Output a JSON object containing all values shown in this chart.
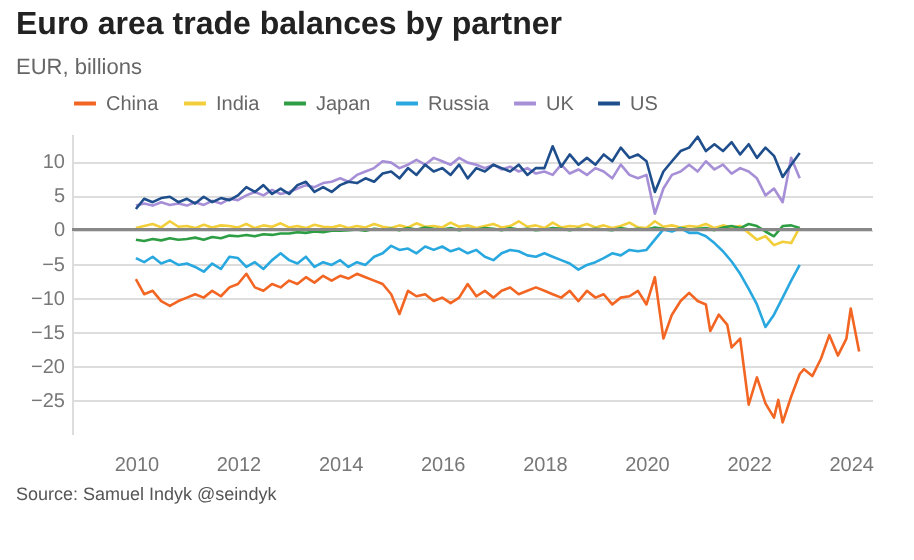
{
  "chart_data": {
    "type": "line",
    "title": "Euro area trade balances by partner",
    "subtitle": "EUR, billions",
    "annotations": [
      "Source: Samuel Indyk @seindyk"
    ],
    "x": [
      "2010-01",
      "2010-03",
      "2010-05",
      "2010-07",
      "2010-09",
      "2010-11",
      "2011-01",
      "2011-03",
      "2011-05",
      "2011-07",
      "2011-09",
      "2011-11",
      "2012-01",
      "2012-03",
      "2012-05",
      "2012-07",
      "2012-09",
      "2012-11",
      "2013-01",
      "2013-03",
      "2013-05",
      "2013-07",
      "2013-09",
      "2013-11",
      "2014-01",
      "2014-03",
      "2014-05",
      "2014-07",
      "2014-09",
      "2014-11",
      "2015-01",
      "2015-03",
      "2015-05",
      "2015-07",
      "2015-09",
      "2015-11",
      "2016-01",
      "2016-03",
      "2016-05",
      "2016-07",
      "2016-09",
      "2016-11",
      "2017-01",
      "2017-03",
      "2017-05",
      "2017-07",
      "2017-09",
      "2017-11",
      "2018-01",
      "2018-03",
      "2018-05",
      "2018-07",
      "2018-09",
      "2018-11",
      "2019-01",
      "2019-03",
      "2019-05",
      "2019-07",
      "2019-09",
      "2019-11",
      "2020-01",
      "2020-03",
      "2020-05",
      "2020-07",
      "2020-09",
      "2020-11",
      "2021-01",
      "2021-03",
      "2021-05",
      "2021-07",
      "2021-09",
      "2021-11",
      "2022-01",
      "2022-03",
      "2022-05",
      "2022-07",
      "2022-09",
      "2022-11",
      "2023-01"
    ],
    "series": [
      {
        "name": "China",
        "color": "#f26522",
        "x": [
          "2010-01",
          "2010-03",
          "2010-05",
          "2010-07",
          "2010-09",
          "2010-11",
          "2011-01",
          "2011-03",
          "2011-05",
          "2011-07",
          "2011-09",
          "2011-11",
          "2012-01",
          "2012-03",
          "2012-05",
          "2012-07",
          "2012-09",
          "2012-11",
          "2013-01",
          "2013-03",
          "2013-05",
          "2013-07",
          "2013-09",
          "2013-11",
          "2014-01",
          "2014-03",
          "2014-05",
          "2014-07",
          "2014-09",
          "2014-11",
          "2015-01",
          "2015-03",
          "2015-05",
          "2015-07",
          "2015-09",
          "2015-11",
          "2016-01",
          "2016-03",
          "2016-05",
          "2016-07",
          "2016-09",
          "2016-11",
          "2017-01",
          "2017-03",
          "2017-05",
          "2017-07",
          "2017-09",
          "2017-11",
          "2018-01",
          "2018-03",
          "2018-05",
          "2018-07",
          "2018-09",
          "2018-11",
          "2019-01",
          "2019-03",
          "2019-05",
          "2019-07",
          "2019-09",
          "2019-11",
          "2020-01",
          "2020-03",
          "2020-05",
          "2020-07",
          "2020-09",
          "2020-11",
          "2021-01",
          "2021-03",
          "2021-04",
          "2021-06",
          "2021-08",
          "2021-09",
          "2021-11",
          "2022-01",
          "2022-03",
          "2022-05",
          "2022-07",
          "2022-08",
          "2022-09",
          "2022-11",
          "2023-01",
          "2023-02",
          "2023-04",
          "2023-06",
          "2023-08",
          "2023-10",
          "2023-12",
          "2024-01",
          "2024-03"
        ],
        "values": [
          -7.3,
          -9.5,
          -9,
          -10.5,
          -11.2,
          -10.5,
          -10,
          -9.5,
          -10,
          -9,
          -9.8,
          -8.5,
          -8,
          -6.5,
          -8.5,
          -9,
          -8,
          -8.5,
          -7.5,
          -8,
          -7,
          -7.8,
          -6.8,
          -7.5,
          -6.8,
          -7.2,
          -6.5,
          -7,
          -7.5,
          -8,
          -9.5,
          -12.4,
          -9,
          -9.8,
          -9.5,
          -10.5,
          -10,
          -10.8,
          -10,
          -8,
          -9.8,
          -9,
          -10,
          -9,
          -8.5,
          -9.5,
          -9,
          -8.5,
          -9,
          -9.5,
          -10,
          -9,
          -10.5,
          -9,
          -10,
          -9.5,
          -11,
          -10,
          -9.8,
          -9,
          -11,
          -7,
          -16,
          -12.5,
          -10.5,
          -9.3,
          -10.5,
          -11,
          -14.9,
          -12.5,
          -14,
          -17.3,
          -16,
          -25.7,
          -21.7,
          -25.5,
          -27.6,
          -25,
          -28.3,
          -24.5,
          -21.2,
          -20.5,
          -21.5,
          -19,
          -15.5,
          -18.5,
          -16,
          -11.6,
          -17.9
        ]
      },
      {
        "name": "India",
        "color": "#f2cf3a",
        "values": [
          0.2,
          0.5,
          0.8,
          0.3,
          1.2,
          0.4,
          0.5,
          0.2,
          0.7,
          0.3,
          0.6,
          0.5,
          0.3,
          0.8,
          0.2,
          0.6,
          0.4,
          0.9,
          0.3,
          0.5,
          0.2,
          0.7,
          0.4,
          0.3,
          0.6,
          0.2,
          0.5,
          0.3,
          0.8,
          0.4,
          0.2,
          0.6,
          0.3,
          0.9,
          0.4,
          0.5,
          0.3,
          1.0,
          0.4,
          0.6,
          0.2,
          0.5,
          0.8,
          0.3,
          0.5,
          1.2,
          0.4,
          0.6,
          0.2,
          1.0,
          0.3,
          0.5,
          0.4,
          0.8,
          0.3,
          0.6,
          0.2,
          0.5,
          1.0,
          0.3,
          0.2,
          1.2,
          0.4,
          0.6,
          0.3,
          0.5,
          0.4,
          0.8,
          0.2,
          0.6,
          0.3,
          0.5,
          -0.5,
          -1.5,
          -1.0,
          -2.3,
          -1.8,
          -2.0,
          0.3
        ]
      },
      {
        "name": "Japan",
        "color": "#2e9e44",
        "values": [
          -1.5,
          -1.7,
          -1.4,
          -1.6,
          -1.3,
          -1.5,
          -1.4,
          -1.2,
          -1.5,
          -1.1,
          -1.3,
          -0.9,
          -1.0,
          -0.8,
          -1.0,
          -0.7,
          -0.8,
          -0.6,
          -0.6,
          -0.4,
          -0.5,
          -0.3,
          -0.4,
          -0.2,
          -0.2,
          -0.1,
          0.0,
          -0.2,
          0.1,
          0.0,
          0.1,
          -0.1,
          0.2,
          0.0,
          0.3,
          0.1,
          0.0,
          0.2,
          -0.1,
          0.1,
          0.0,
          0.2,
          0.1,
          -0.1,
          0.2,
          0.0,
          0.1,
          -0.1,
          0.0,
          0.2,
          0.1,
          -0.1,
          0.1,
          0.0,
          0.1,
          0.0,
          -0.1,
          0.2,
          0.0,
          0.1,
          0.0,
          0.3,
          0.1,
          -0.2,
          0.2,
          0.0,
          0.1,
          0.2,
          -0.1,
          0.3,
          0.5,
          0.2,
          0.8,
          0.5,
          -0.3,
          -1.0,
          0.5,
          0.6,
          0.2
        ]
      },
      {
        "name": "Russia",
        "color": "#29a8e0",
        "values": [
          -4.2,
          -4.8,
          -4.0,
          -5.0,
          -4.5,
          -5.2,
          -5.0,
          -5.5,
          -6.2,
          -5.0,
          -5.8,
          -4.0,
          -4.2,
          -5.5,
          -4.8,
          -5.8,
          -4.5,
          -3.5,
          -4.5,
          -5.0,
          -4.0,
          -5.5,
          -4.8,
          -5.2,
          -4.5,
          -5.5,
          -4.8,
          -5.2,
          -4.0,
          -3.5,
          -2.4,
          -3.0,
          -2.8,
          -3.5,
          -2.5,
          -3.0,
          -2.5,
          -3.2,
          -2.8,
          -3.5,
          -3.0,
          -4.0,
          -4.5,
          -3.5,
          -3.0,
          -3.2,
          -3.8,
          -4.0,
          -3.5,
          -4.0,
          -4.5,
          -5.0,
          -5.9,
          -5.2,
          -4.8,
          -4.2,
          -3.5,
          -3.8,
          -3.0,
          -3.2,
          -3.0,
          -1.5,
          0.0,
          -0.3,
          0.2,
          -0.5,
          -0.5,
          -1.0,
          -2.0,
          -3.2,
          -4.7,
          -6.5,
          -8.7,
          -11.0,
          -14.3,
          -12.5,
          -10.0,
          -7.5,
          -5.2
        ]
      },
      {
        "name": "UK",
        "color": "#a68fd6",
        "values": [
          3.5,
          3.8,
          3.5,
          4.0,
          3.6,
          3.8,
          3.5,
          4.0,
          3.6,
          4.2,
          3.8,
          4.5,
          4.3,
          5.0,
          5.5,
          5.0,
          5.8,
          5.2,
          5.5,
          6.0,
          6.5,
          6.2,
          6.8,
          7.0,
          7.5,
          7.0,
          8.0,
          8.5,
          9.0,
          10.0,
          9.8,
          9.0,
          9.5,
          10.2,
          9.5,
          10.5,
          10.0,
          9.5,
          10.5,
          9.8,
          9.5,
          9.0,
          9.5,
          8.8,
          9.2,
          8.5,
          9.0,
          8.2,
          8.5,
          8.0,
          9.5,
          8.2,
          8.8,
          8.0,
          9.0,
          8.5,
          7.5,
          9.5,
          8.0,
          7.5,
          8.0,
          2.3,
          6.0,
          8.0,
          8.5,
          9.5,
          8.5,
          10.0,
          8.8,
          9.5,
          8.2,
          9.0,
          8.5,
          7.5,
          5.0,
          6.0,
          4.0,
          10.5,
          7.5
        ]
      },
      {
        "name": "US",
        "color": "#1f4e8c",
        "values": [
          3.0,
          4.5,
          4.0,
          4.6,
          4.8,
          4.0,
          4.5,
          3.8,
          4.8,
          4.0,
          4.6,
          4.3,
          5.0,
          6.2,
          5.5,
          6.5,
          5.2,
          6.0,
          5.2,
          6.5,
          7.0,
          5.5,
          6.2,
          5.5,
          6.5,
          7.0,
          6.8,
          7.5,
          7.0,
          8.2,
          8.5,
          7.5,
          9.0,
          8.0,
          9.5,
          8.5,
          9.0,
          8.0,
          9.5,
          7.5,
          9.0,
          8.5,
          9.5,
          9.0,
          8.5,
          9.5,
          8.0,
          9.0,
          9.0,
          12.2,
          9.2,
          11.0,
          9.5,
          10.5,
          9.5,
          11.0,
          10.0,
          12.0,
          10.5,
          11.0,
          10.0,
          5.5,
          8.5,
          10.0,
          11.5,
          12.0,
          13.6,
          11.5,
          12.5,
          11.5,
          12.8,
          11.0,
          12.5,
          10.5,
          12.0,
          10.8,
          7.7,
          9.5,
          11.2
        ]
      }
    ],
    "xlim": [
      "2008-10",
      "2024-06"
    ],
    "xticks": [
      "2010",
      "2012",
      "2014",
      "2016",
      "2018",
      "2020",
      "2022",
      "2024"
    ],
    "ylim": [
      -30,
      14
    ],
    "yticks": [
      -25,
      -20,
      -15,
      -10,
      -5,
      0,
      5,
      10
    ],
    "ref_lines": [
      {
        "axis": "y",
        "value": 0,
        "color": "#888888"
      }
    ],
    "grid": "y",
    "legend": "top left",
    "line_style": "solid",
    "marker": "none"
  }
}
